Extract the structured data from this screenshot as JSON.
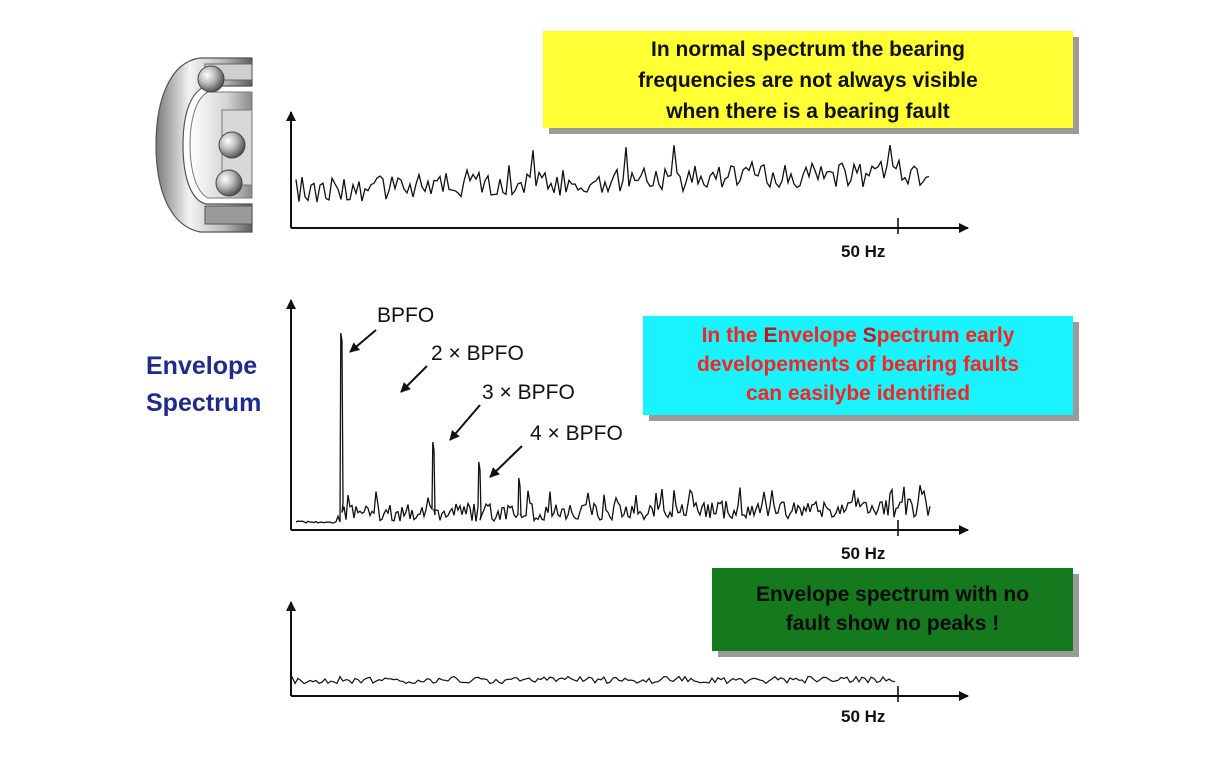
{
  "notes": {
    "normal": {
      "lines": [
        "In normal spectrum the bearing",
        "frequencies are not always visible",
        "when there is a bearing fault"
      ],
      "bg_color": "#ffff33"
    },
    "envelope": {
      "line1_a": "In the ",
      "line1_b": "E",
      "line1_c": "nvelope ",
      "line1_d": "S",
      "line1_e": "pectrum early",
      "line2": "developements of bearing faults",
      "line3": "can easilybe identified",
      "bg_color": "#19f3ff",
      "text_color": "#ff2020"
    },
    "no_fault": {
      "line1_a": "E",
      "line1_b": "nvelope spectrum with no",
      "line2": "fault show no peaks !",
      "bg_color": "#157a1d"
    }
  },
  "envelope_label": [
    "Envelope",
    "Spectrum"
  ],
  "spectra": {
    "normal": {
      "freq_tick": "50 Hz"
    },
    "envelope": {
      "freq_tick": "50 Hz",
      "peaks": [
        "BPFO",
        "2 × BPFO",
        "3 × BPFO",
        "4 × BPFO"
      ]
    },
    "no_fault": {
      "freq_tick": "50 Hz"
    }
  },
  "icons": {
    "bearing": "ball-bearing-icon"
  }
}
